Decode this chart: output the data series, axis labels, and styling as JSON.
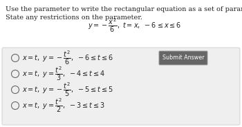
{
  "bg_color": "#ffffff",
  "options_bg": "#efefef",
  "title_line1": "Use the parameter to write the rectangular equation as a set of parametric equations.",
  "title_line2_plain": "State any restrictions on the parameter. ",
  "title_line2_math": "$y = -\\dfrac{x^2}{6},\\ t = x,\\ -6 \\leq x \\leq 6$",
  "title_fontsize": 7.0,
  "option_fontsize": 7.0,
  "text_color": "#222222",
  "submit_label": "Submit Answer",
  "submit_bg": "#666666",
  "submit_text_color": "#ffffff",
  "submit_border": "#999999",
  "circle_color": "#666666",
  "option_texts": [
    "$x = t,\\ y = -\\dfrac{t^2}{6},\\ -6 \\leq t \\leq 6$",
    "$x = t,\\ y = \\dfrac{t^2}{3},\\ -4 \\leq t \\leq 4$",
    "$x = t,\\ y = -\\dfrac{t^2}{5},\\ -5 \\leq t \\leq 5$",
    "$x = t,\\ y = \\dfrac{t^2}{2},\\ -3 \\leq t \\leq 3$"
  ]
}
